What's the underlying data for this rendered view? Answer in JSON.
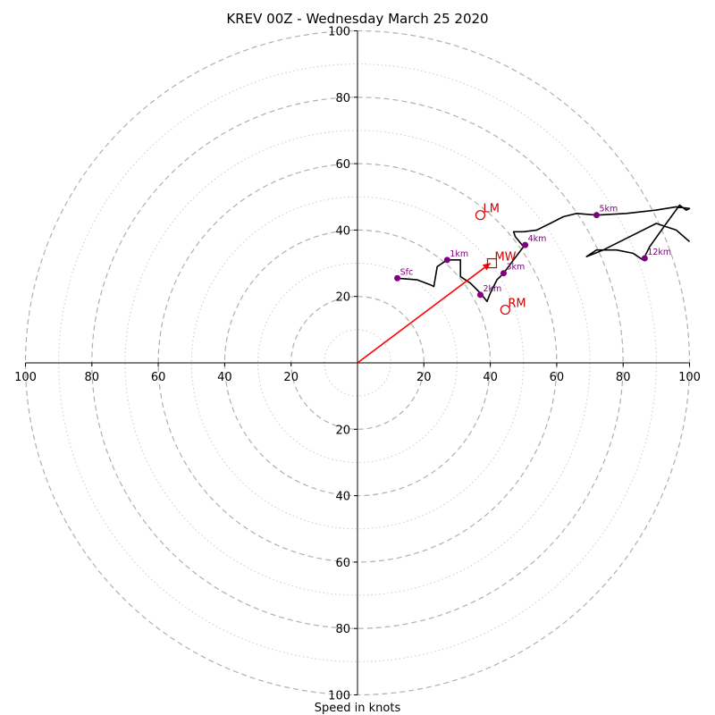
{
  "chart_data": {
    "type": "scatter",
    "subtype": "hodograph",
    "title": "KREV 00Z - Wednesday March 25 2020",
    "xlabel": "Speed in knots",
    "xlim": [
      -100,
      100
    ],
    "ylim": [
      -100,
      100
    ],
    "ring_major": [
      20,
      40,
      60,
      80,
      100
    ],
    "ring_minor": [
      10,
      30,
      50,
      70,
      90
    ],
    "x_tick_labels": [
      "100",
      "80",
      "60",
      "40",
      "20",
      "20",
      "40",
      "60",
      "80",
      "100"
    ],
    "x_tick_values": [
      -100,
      -80,
      -60,
      -40,
      -20,
      20,
      40,
      60,
      80,
      100
    ],
    "y_tick_labels_top": [
      "20",
      "40",
      "60",
      "80",
      "100"
    ],
    "y_tick_values_top": [
      20,
      40,
      60,
      80,
      100
    ],
    "y_tick_labels_bottom": [
      "20",
      "40",
      "60",
      "80",
      "100"
    ],
    "y_tick_values_bottom": [
      -20,
      -40,
      -60,
      -80,
      -100
    ],
    "grid": true,
    "hodograph_trace": [
      [
        12,
        25.5
      ],
      [
        18,
        25
      ],
      [
        22,
        23.5
      ],
      [
        23,
        23
      ],
      [
        24,
        29
      ],
      [
        27,
        31
      ],
      [
        30,
        31
      ],
      [
        31,
        31
      ],
      [
        31,
        26
      ],
      [
        34,
        24
      ],
      [
        37,
        21
      ],
      [
        39,
        18.5
      ],
      [
        40,
        21
      ],
      [
        42,
        25
      ],
      [
        44,
        27
      ],
      [
        47,
        31
      ],
      [
        50,
        35
      ],
      [
        47.5,
        38
      ],
      [
        47,
        39.5
      ],
      [
        50,
        39.5
      ],
      [
        54,
        40
      ],
      [
        58,
        42
      ],
      [
        62,
        44
      ],
      [
        66,
        45
      ],
      [
        72,
        44.5
      ],
      [
        81,
        45
      ],
      [
        90,
        46
      ],
      [
        96,
        47
      ],
      [
        100,
        46.5
      ],
      [
        99,
        46
      ],
      [
        97,
        47.5
      ],
      [
        93,
        42
      ],
      [
        88,
        35
      ],
      [
        86,
        31
      ],
      [
        83,
        33
      ],
      [
        78,
        34
      ],
      [
        72,
        34
      ],
      [
        69,
        32
      ],
      [
        74,
        34
      ],
      [
        90,
        42
      ],
      [
        96,
        40
      ],
      [
        100,
        36.5
      ]
    ],
    "height_markers": [
      {
        "label": "Sfc",
        "x": 12,
        "y": 25.5
      },
      {
        "label": "1km",
        "x": 27,
        "y": 31
      },
      {
        "label": "2km",
        "x": 37,
        "y": 20.5
      },
      {
        "label": "3km",
        "x": 44,
        "y": 27
      },
      {
        "label": "4km",
        "x": 50.5,
        "y": 35.5
      },
      {
        "label": "5km",
        "x": 72,
        "y": 44.5
      },
      {
        "label": "12km",
        "x": 86.5,
        "y": 31.5
      }
    ],
    "storm_motion": [
      {
        "label": "LM",
        "x": 37,
        "y": 44.5,
        "marker": "circle"
      },
      {
        "label": "MW",
        "x": 40.5,
        "y": 30,
        "marker": "square"
      },
      {
        "label": "RM",
        "x": 44.5,
        "y": 16,
        "marker": "circle"
      }
    ],
    "shear_vector": {
      "from": [
        0,
        0
      ],
      "to": [
        40,
        30
      ]
    },
    "colors": {
      "trace": "#000000",
      "height_marker": "#800080",
      "storm_motion": "#cc0000",
      "shear_vector": "#ff0000",
      "grid": "#b0b0b0",
      "minor_grid": "#cccccc"
    }
  }
}
